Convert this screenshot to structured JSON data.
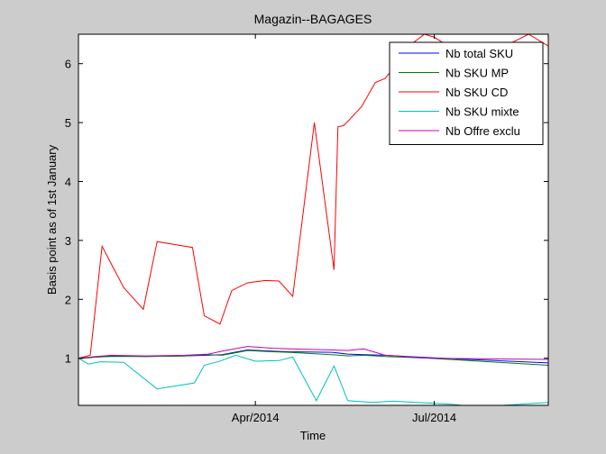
{
  "chart_data": {
    "type": "line",
    "title": "Magazin--BAGAGES",
    "xlabel": "Time",
    "ylabel": "Basis point as of 1st January",
    "xlim": [
      "2014-01-01",
      "2014-08-28"
    ],
    "ylim": [
      0.2,
      6.5
    ],
    "x_ticks": [
      {
        "date": "2014-04-01",
        "label": "Apr/2014"
      },
      {
        "date": "2014-07-01",
        "label": "Jul/2014"
      }
    ],
    "y_ticks": [
      1,
      2,
      3,
      4,
      5,
      6
    ],
    "y_tick_labels": [
      "1",
      "2",
      "3",
      "4",
      "5",
      "6"
    ],
    "grid": false,
    "legend_position": "top-right",
    "series": [
      {
        "name": "Nb total SKU",
        "color": "#0000ff",
        "x": [
          "2014-01-01",
          "2014-01-10",
          "2014-01-18",
          "2014-02-04",
          "2014-02-24",
          "2014-03-08",
          "2014-03-15",
          "2014-03-28",
          "2014-04-10",
          "2014-04-18",
          "2014-05-10",
          "2014-05-18",
          "2014-05-26",
          "2014-06-06",
          "2014-06-28",
          "2014-08-28"
        ],
        "y": [
          1.0,
          1.02,
          1.04,
          1.03,
          1.04,
          1.05,
          1.06,
          1.14,
          1.12,
          1.11,
          1.1,
          1.07,
          1.06,
          1.05,
          1.01,
          0.92
        ]
      },
      {
        "name": "Nb SKU MP",
        "color": "#008000",
        "x": [
          "2014-01-01",
          "2014-01-10",
          "2014-01-18",
          "2014-02-04",
          "2014-02-24",
          "2014-03-08",
          "2014-03-15",
          "2014-03-28",
          "2014-04-10",
          "2014-04-18",
          "2014-05-10",
          "2014-05-18",
          "2014-05-26",
          "2014-06-06",
          "2014-06-28",
          "2014-08-28"
        ],
        "y": [
          0.99,
          1.02,
          1.03,
          1.03,
          1.04,
          1.06,
          1.05,
          1.13,
          1.11,
          1.1,
          1.06,
          1.04,
          1.05,
          1.03,
          1.0,
          0.88
        ]
      },
      {
        "name": "Nb SKU CD",
        "color": "#ff0000",
        "x": [
          "2014-01-01",
          "2014-01-07",
          "2014-01-13",
          "2014-01-24",
          "2014-02-03",
          "2014-02-10",
          "2014-02-28",
          "2014-03-06",
          "2014-03-14",
          "2014-03-20",
          "2014-03-28",
          "2014-04-06",
          "2014-04-13",
          "2014-04-20",
          "2014-05-01",
          "2014-05-11",
          "2014-05-13",
          "2014-05-16",
          "2014-05-25",
          "2014-06-01",
          "2014-06-06",
          "2014-06-12",
          "2014-06-18",
          "2014-06-26",
          "2014-07-01",
          "2014-07-08",
          "2014-07-18",
          "2014-07-28",
          "2014-08-06",
          "2014-08-18",
          "2014-08-28"
        ],
        "y": [
          1.0,
          1.05,
          2.9,
          2.2,
          1.83,
          2.98,
          2.88,
          1.72,
          1.58,
          2.15,
          2.28,
          2.32,
          2.31,
          2.05,
          5.0,
          2.5,
          4.93,
          4.95,
          5.27,
          5.68,
          5.75,
          6.0,
          6.3,
          6.5,
          6.45,
          6.3,
          6.2,
          6.2,
          6.3,
          6.5,
          6.3
        ]
      },
      {
        "name": "Nb SKU mixte",
        "color": "#00bfbf",
        "x": [
          "2014-01-01",
          "2014-01-06",
          "2014-01-12",
          "2014-01-24",
          "2014-02-10",
          "2014-03-01",
          "2014-03-06",
          "2014-03-14",
          "2014-03-22",
          "2014-04-01",
          "2014-04-13",
          "2014-04-20",
          "2014-05-02",
          "2014-05-11",
          "2014-05-18",
          "2014-05-30",
          "2014-06-10",
          "2014-06-22",
          "2014-07-10",
          "2014-07-22",
          "2014-08-28"
        ],
        "y": [
          1.0,
          0.9,
          0.94,
          0.93,
          0.48,
          0.58,
          0.88,
          0.95,
          1.05,
          0.95,
          0.96,
          1.02,
          0.28,
          0.87,
          0.28,
          0.25,
          0.27,
          0.25,
          0.22,
          0.17,
          0.25
        ]
      },
      {
        "name": "Nb Offre exclu",
        "color": "#bf00bf",
        "x": [
          "2014-01-01",
          "2014-01-10",
          "2014-01-18",
          "2014-02-04",
          "2014-02-24",
          "2014-03-08",
          "2014-03-15",
          "2014-03-28",
          "2014-04-10",
          "2014-04-18",
          "2014-05-10",
          "2014-05-18",
          "2014-05-26",
          "2014-06-06",
          "2014-06-28",
          "2014-08-28"
        ],
        "y": [
          1.0,
          1.03,
          1.05,
          1.04,
          1.05,
          1.07,
          1.12,
          1.2,
          1.17,
          1.16,
          1.14,
          1.13,
          1.16,
          1.05,
          1.0,
          0.98
        ]
      }
    ]
  }
}
